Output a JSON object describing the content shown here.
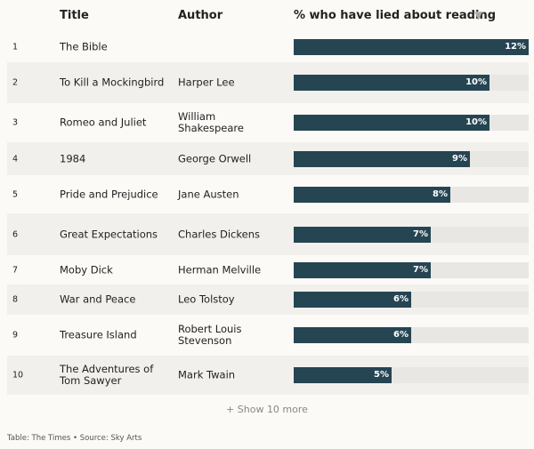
{
  "header": {
    "title": "Title",
    "author": "Author",
    "value": "% who have lied about reading"
  },
  "rows": [
    {
      "rank": 1,
      "title": "The Bible",
      "author": "",
      "value": 12,
      "value_label": "12%"
    },
    {
      "rank": 2,
      "title": "To Kill a Mockingbird",
      "author": "Harper Lee",
      "value": 10,
      "value_label": "10%"
    },
    {
      "rank": 3,
      "title": "Romeo and Juliet",
      "author": "William Shakespeare",
      "value": 10,
      "value_label": "10%"
    },
    {
      "rank": 4,
      "title": "1984",
      "author": "George Orwell",
      "value": 9,
      "value_label": "9%"
    },
    {
      "rank": 5,
      "title": "Pride and Prejudice",
      "author": "Jane Austen",
      "value": 8,
      "value_label": "8%"
    },
    {
      "rank": 6,
      "title": "Great Expectations",
      "author": "Charles Dickens",
      "value": 7,
      "value_label": "7%"
    },
    {
      "rank": 7,
      "title": "Moby Dick",
      "author": "Herman Melville",
      "value": 7,
      "value_label": "7%"
    },
    {
      "rank": 8,
      "title": "War and Peace",
      "author": "Leo Tolstoy",
      "value": 6,
      "value_label": "6%"
    },
    {
      "rank": 9,
      "title": "Treasure Island",
      "author": "Robert Louis Stevenson",
      "value": 6,
      "value_label": "6%"
    },
    {
      "rank": 10,
      "title": "The Adventures of Tom Sawyer",
      "author": "Mark Twain",
      "value": 5,
      "value_label": "5%"
    }
  ],
  "show_more": "+ Show 10 more",
  "source": "Table: The Times • Source: Sky Arts"
}
